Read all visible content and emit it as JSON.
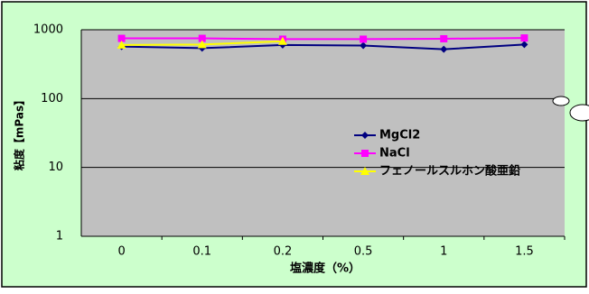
{
  "chart_data": {
    "type": "line",
    "categories": [
      "0",
      "0.1",
      "0.2",
      "0.5",
      "1",
      "1.5"
    ],
    "series": [
      {
        "name": "MgCl2",
        "color": "#000080",
        "marker": "diamond",
        "values": [
          570,
          540,
          600,
          590,
          520,
          610
        ]
      },
      {
        "name": "NaCl",
        "color": "#ff00ff",
        "marker": "square",
        "values": [
          750,
          750,
          730,
          730,
          740,
          760
        ]
      },
      {
        "name": "フェノールスルホン酸亜鉛",
        "color": "#ffff00",
        "marker": "triangle",
        "values": [
          600,
          610,
          680,
          null,
          null,
          null
        ]
      }
    ],
    "ylim": [
      1,
      1000
    ],
    "yticks": [
      1,
      10,
      100,
      1000
    ],
    "log_y": true,
    "grid": true,
    "xlabel": "塩濃度（%）",
    "ylabel": "粘度【mPas】"
  }
}
